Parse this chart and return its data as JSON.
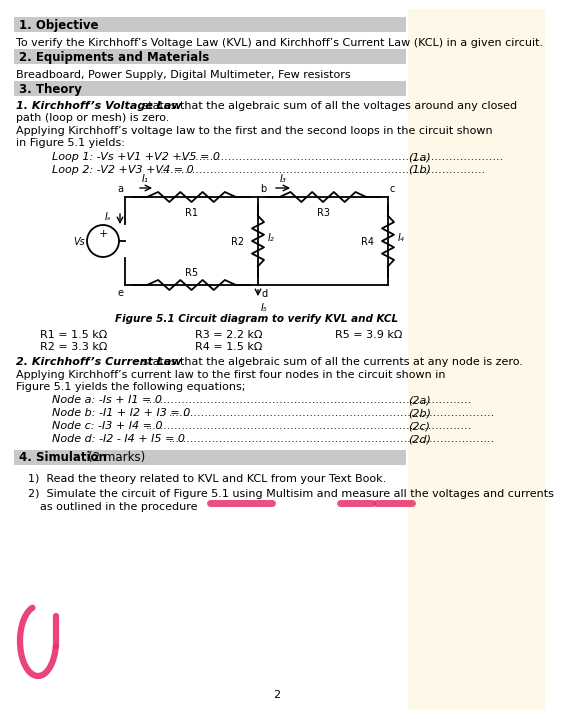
{
  "bg_color": "#ffffff",
  "section_header_bg": "#c8c8c8",
  "cream_bg": "#fdfdf0",
  "title_fontsize": 8.5,
  "body_fontsize": 8.0,
  "small_fontsize": 7.5,
  "objective_text": "To verify the Kirchhoff’s Voltage Law (KVL) and Kirchhoff’s Current Law (KCL) in a given circuit.",
  "equip_text": "Breadboard, Power Supply, Digital Multimeter, Few resistors",
  "theory_kvl_bold": "1. Kirchhoff’s Voltage Law",
  "theory_kcl_bold": "2. Kirchhoff’s Current Law",
  "loop1_text": "Loop 1: -Vs +V1 +V2 +V5 = 0",
  "loop1_num": "(1a)",
  "loop2_text": "Loop 2: -V2 +V3 +V4 = 0",
  "loop2_num": "(1b)",
  "fig_caption": "Figure 5.1 Circuit diagram to verify KVL and KCL",
  "r1": "R1 = 1.5 kΩ",
  "r2": "R2 = 3.3 kΩ",
  "r3": "R3 = 2.2 kΩ",
  "r4": "R4 = 1.5 kΩ",
  "r5": "R5 = 3.9 kΩ",
  "nodes": [
    {
      "text": "Node a: -Is + I1 = 0",
      "num": "(2a)"
    },
    {
      "text": "Node b: -I1 + I2 + I3 = 0",
      "num": "(2b)"
    },
    {
      "text": "Node c: -I3 + I4 = 0",
      "num": "(2c)"
    },
    {
      "text": "Node d: -I2 - I4 + I5 = 0",
      "num": "(2d)"
    }
  ],
  "sim_item1": "Read the theory related to KVL and KCL from your Text Book.",
  "sim_item2": "Simulate the circuit of Figure 5.1 using Multisim and measure all the voltages and currents",
  "sim_item2b": "as outlined in the procedure",
  "page_num": "2"
}
